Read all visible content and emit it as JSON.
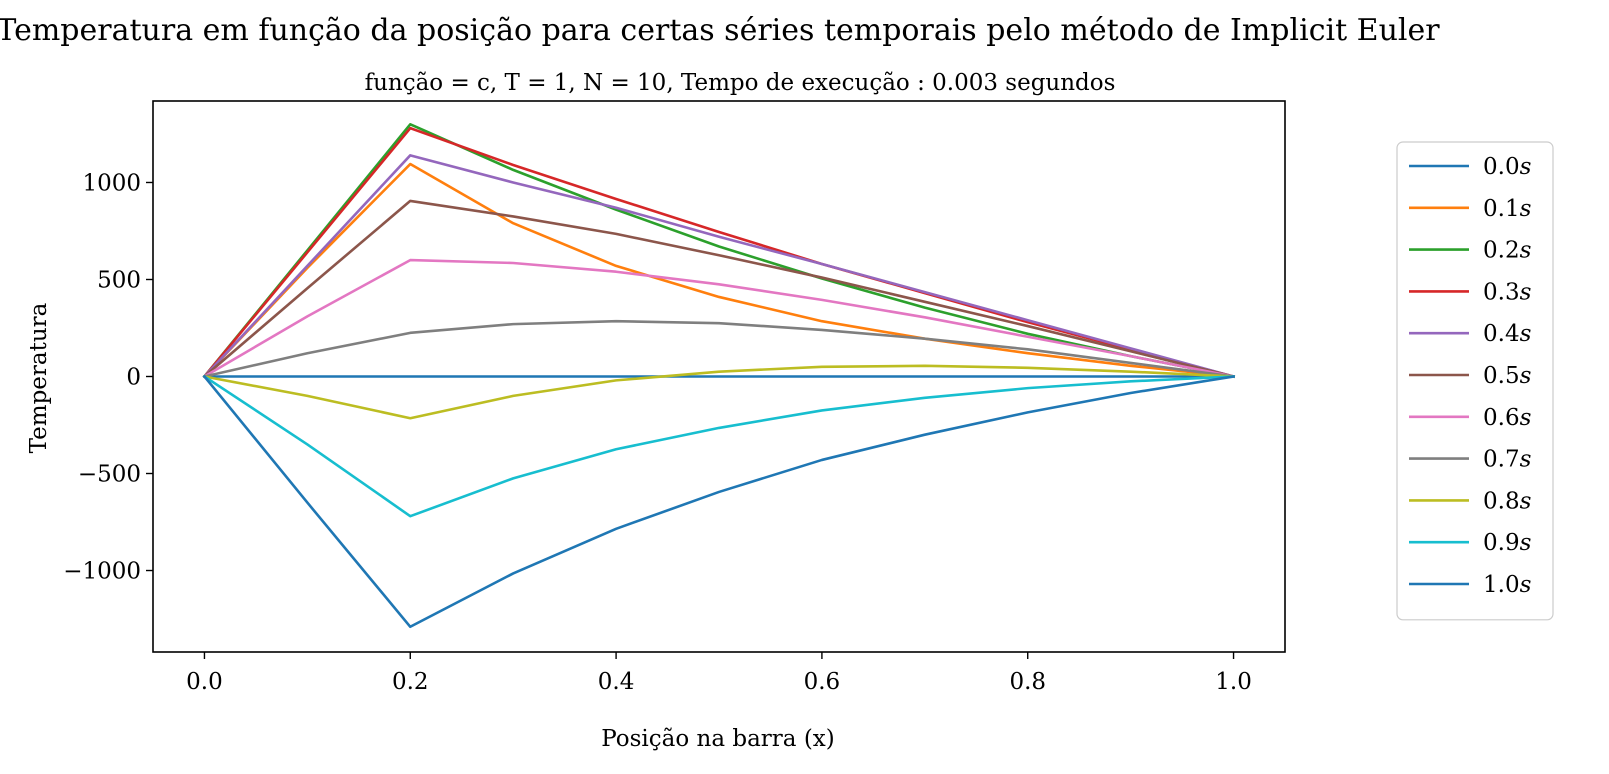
{
  "chart_data": {
    "type": "line",
    "title": "Temperatura em função da posição para certas séries temporais pelo método de Implicit Euler",
    "subtitle": "função = c,  T = 1,  N = 10,  Tempo de execução :  0.003 segundos",
    "xlabel": "Posição na barra (x)",
    "ylabel": "Temperatura",
    "xlim": [
      -0.05,
      1.05
    ],
    "ylim": [
      -1420,
      1420
    ],
    "xticks": [
      0.0,
      0.2,
      0.4,
      0.6,
      0.8,
      1.0
    ],
    "xtick_labels": [
      "0.0",
      "0.2",
      "0.4",
      "0.6",
      "0.8",
      "1.0"
    ],
    "yticks": [
      -1000,
      -500,
      0,
      500,
      1000
    ],
    "ytick_labels": [
      "−1000",
      "−500",
      "0",
      "500",
      "1000"
    ],
    "grid": false,
    "legend_position": "outside-right",
    "x": [
      0.0,
      0.1,
      0.2,
      0.3,
      0.4,
      0.5,
      0.6,
      0.7,
      0.8,
      0.9,
      1.0
    ],
    "series": [
      {
        "name": "0.0s",
        "label_value": "0.0",
        "label_unit": "s",
        "color": "#1f77b4",
        "values": [
          0,
          0,
          0,
          0,
          0,
          0,
          0,
          0,
          0,
          0,
          0
        ]
      },
      {
        "name": "0.1s",
        "label_value": "0.1",
        "label_unit": "s",
        "color": "#ff7f0e",
        "values": [
          0,
          560,
          1095,
          790,
          570,
          410,
          285,
          195,
          120,
          55,
          0
        ]
      },
      {
        "name": "0.2s",
        "label_value": "0.2",
        "label_unit": "s",
        "color": "#2ca02c",
        "values": [
          0,
          650,
          1300,
          1065,
          860,
          670,
          505,
          355,
          220,
          105,
          0
        ]
      },
      {
        "name": "0.3s",
        "label_value": "0.3",
        "label_unit": "s",
        "color": "#d62728",
        "values": [
          0,
          640,
          1280,
          1090,
          915,
          745,
          580,
          430,
          280,
          140,
          0
        ]
      },
      {
        "name": "0.4s",
        "label_value": "0.4",
        "label_unit": "s",
        "color": "#9467bd",
        "values": [
          0,
          570,
          1140,
          1000,
          870,
          720,
          580,
          435,
          290,
          145,
          0
        ]
      },
      {
        "name": "0.5s",
        "label_value": "0.5",
        "label_unit": "s",
        "color": "#8c564b",
        "values": [
          0,
          455,
          905,
          825,
          735,
          625,
          510,
          385,
          260,
          130,
          0
        ]
      },
      {
        "name": "0.6s",
        "label_value": "0.6",
        "label_unit": "s",
        "color": "#e377c2",
        "values": [
          0,
          310,
          600,
          585,
          540,
          475,
          395,
          305,
          205,
          105,
          0
        ]
      },
      {
        "name": "0.7s",
        "label_value": "0.7",
        "label_unit": "s",
        "color": "#7f7f7f",
        "values": [
          0,
          120,
          225,
          270,
          285,
          275,
          240,
          195,
          140,
          70,
          0
        ]
      },
      {
        "name": "0.8s",
        "label_value": "0.8",
        "label_unit": "s",
        "color": "#bcbd22",
        "values": [
          0,
          -100,
          -215,
          -100,
          -20,
          25,
          50,
          55,
          45,
          25,
          0
        ]
      },
      {
        "name": "0.9s",
        "label_value": "0.9",
        "label_unit": "s",
        "color": "#17becf",
        "values": [
          0,
          -350,
          -720,
          -525,
          -375,
          -265,
          -175,
          -110,
          -60,
          -25,
          0
        ]
      },
      {
        "name": "1.0s",
        "label_value": "1.0",
        "label_unit": "s",
        "color": "#1f77b4",
        "values": [
          0,
          -650,
          -1290,
          -1015,
          -785,
          -595,
          -430,
          -300,
          -185,
          -85,
          0
        ]
      }
    ]
  }
}
